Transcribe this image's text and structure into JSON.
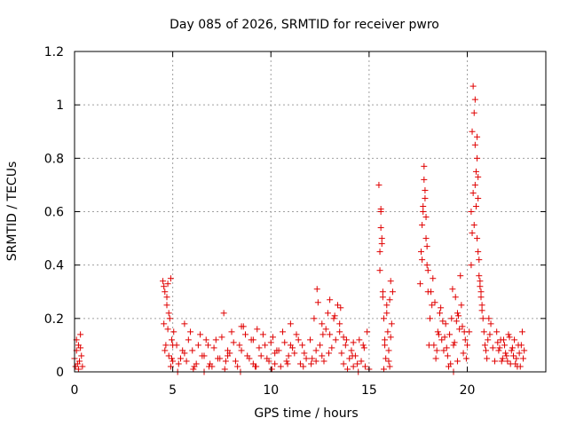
{
  "chart_data": {
    "type": "scatter",
    "title": "Day 085 of 2026, SRMTID for receiver pwro",
    "xlabel": "GPS time / hours",
    "ylabel": "SRMTID / TECUs",
    "xlim": [
      0,
      24
    ],
    "ylim": [
      0,
      1.2
    ],
    "xticks": [
      0,
      5,
      10,
      15,
      20
    ],
    "xtick_labels": [
      "0",
      "5",
      "10",
      "15",
      "20"
    ],
    "yticks": [
      0,
      0.2,
      0.4,
      0.6,
      0.8,
      1.0,
      1.2
    ],
    "ytick_labels": [
      "0",
      "0.2",
      "0.4",
      "0.6",
      "0.8",
      "1",
      "1.2"
    ],
    "grid": true,
    "marker": "+",
    "color": "#e00000",
    "series": [
      {
        "name": "SRMTID",
        "x": [
          0.0,
          0.05,
          0.1,
          0.15,
          0.2,
          0.25,
          0.3,
          0.35,
          0.4,
          0.1,
          0.3,
          0.2,
          4.5,
          4.55,
          4.6,
          4.65,
          4.7,
          4.75,
          4.8,
          4.85,
          4.9,
          4.95,
          5.0,
          5.05,
          4.6,
          4.7,
          4.8,
          4.9,
          5.0,
          4.55,
          4.75,
          4.95,
          5.2,
          5.4,
          5.6,
          5.8,
          6.0,
          6.2,
          6.4,
          6.6,
          6.8,
          7.0,
          7.2,
          7.4,
          7.6,
          7.8,
          8.0,
          8.2,
          8.4,
          8.6,
          8.8,
          9.0,
          9.2,
          9.4,
          9.6,
          9.8,
          10.0,
          10.2,
          10.4,
          10.6,
          10.8,
          11.0,
          11.2,
          11.4,
          11.6,
          11.8,
          5.3,
          5.5,
          5.7,
          5.9,
          6.1,
          6.3,
          6.5,
          6.7,
          6.9,
          7.1,
          7.3,
          7.5,
          7.7,
          7.9,
          8.1,
          8.3,
          8.5,
          8.7,
          8.9,
          9.1,
          9.3,
          9.5,
          9.7,
          9.9,
          10.1,
          10.3,
          10.5,
          10.7,
          10.9,
          11.1,
          11.3,
          11.5,
          11.7,
          5.25,
          6.05,
          6.85,
          7.65,
          8.45,
          9.25,
          10.05,
          10.85,
          11.65,
          7.8,
          8.5,
          9.1,
          10.2,
          11.0,
          6.6,
          5.6,
          12.0,
          12.1,
          12.2,
          12.3,
          12.4,
          12.5,
          12.6,
          12.7,
          12.8,
          12.9,
          13.0,
          13.1,
          13.2,
          13.3,
          13.4,
          13.5,
          13.6,
          13.7,
          13.8,
          13.9,
          14.0,
          14.1,
          14.2,
          14.3,
          14.4,
          14.5,
          14.6,
          14.7,
          14.8,
          14.9,
          15.0,
          12.05,
          12.35,
          12.65,
          12.95,
          13.25,
          13.55,
          13.85,
          14.15,
          14.45,
          14.75,
          12.3,
          13.5,
          14.2,
          13.0,
          12.6,
          13.7,
          15.5,
          15.55,
          15.6,
          15.65,
          15.7,
          15.75,
          15.8,
          15.85,
          15.9,
          15.95,
          16.0,
          16.05,
          16.1,
          16.15,
          16.2,
          15.55,
          15.6,
          15.65,
          15.7,
          15.8,
          15.9,
          16.0,
          16.1,
          15.6,
          15.75,
          16.05,
          17.6,
          17.65,
          17.7,
          17.75,
          17.8,
          17.85,
          17.9,
          17.95,
          18.0,
          18.1,
          18.2,
          18.3,
          18.4,
          18.5,
          18.6,
          18.7,
          18.8,
          18.9,
          19.0,
          19.1,
          19.2,
          19.3,
          19.4,
          19.5,
          19.6,
          19.7,
          19.8,
          19.9,
          17.8,
          17.85,
          17.9,
          17.95,
          18.0,
          17.7,
          17.75,
          18.15,
          18.35,
          18.55,
          18.75,
          18.95,
          19.15,
          19.35,
          19.55,
          19.75,
          19.95,
          18.25,
          18.45,
          18.65,
          18.85,
          19.05,
          19.25,
          19.45,
          19.65,
          19.85,
          18.05,
          19.3,
          19.5,
          20.0,
          20.1,
          20.2,
          20.25,
          20.3,
          20.35,
          20.4,
          20.45,
          20.5,
          20.55,
          20.6,
          20.65,
          20.7,
          20.75,
          20.8,
          20.85,
          20.9,
          20.95,
          21.0,
          21.05,
          21.1,
          21.2,
          21.3,
          21.4,
          20.35,
          20.4,
          20.45,
          20.5,
          20.3,
          20.55,
          20.25,
          20.6,
          20.65,
          20.7,
          20.75,
          20.5,
          20.55,
          20.4,
          20.2,
          21.15,
          21.5,
          21.6,
          21.7,
          21.8,
          21.9,
          22.0,
          22.1,
          22.2,
          22.3,
          22.4,
          22.5,
          22.6,
          22.7,
          22.8,
          22.9,
          21.55,
          21.75,
          21.95,
          22.15,
          22.35,
          22.55,
          22.75,
          22.85,
          21.65,
          21.85,
          22.05,
          22.25,
          22.45,
          22.65
        ],
        "y": [
          0.05,
          0.02,
          0.08,
          0.03,
          0.1,
          0.04,
          0.14,
          0.06,
          0.02,
          0.12,
          0.09,
          0.01,
          0.34,
          0.18,
          0.3,
          0.1,
          0.25,
          0.33,
          0.06,
          0.2,
          0.35,
          0.12,
          0.04,
          0.15,
          0.08,
          0.28,
          0.22,
          0.02,
          0.1,
          0.32,
          0.16,
          0.05,
          0.1,
          0.05,
          0.18,
          0.12,
          0.08,
          0.03,
          0.14,
          0.06,
          0.1,
          0.02,
          0.12,
          0.05,
          0.22,
          0.08,
          0.15,
          0.04,
          0.1,
          0.17,
          0.06,
          0.12,
          0.02,
          0.09,
          0.14,
          0.05,
          0.11,
          0.03,
          0.08,
          0.15,
          0.04,
          0.18,
          0.07,
          0.12,
          0.1,
          0.05,
          0.03,
          0.08,
          0.04,
          0.15,
          0.02,
          0.1,
          0.06,
          0.12,
          0.03,
          0.09,
          0.05,
          0.13,
          0.04,
          0.07,
          0.11,
          0.02,
          0.08,
          0.14,
          0.05,
          0.03,
          0.16,
          0.06,
          0.1,
          0.04,
          0.13,
          0.08,
          0.02,
          0.11,
          0.06,
          0.09,
          0.14,
          0.03,
          0.07,
          0.0,
          0.01,
          0.02,
          0.01,
          0.0,
          0.02,
          0.01,
          0.03,
          0.02,
          0.06,
          0.17,
          0.12,
          0.07,
          0.1,
          0.0,
          0.07,
          0.12,
          0.05,
          0.2,
          0.08,
          0.26,
          0.1,
          0.18,
          0.04,
          0.16,
          0.22,
          0.14,
          0.09,
          0.2,
          0.12,
          0.25,
          0.15,
          0.07,
          0.03,
          0.1,
          0.01,
          0.05,
          0.08,
          0.02,
          0.06,
          0.03,
          0.12,
          0.04,
          0.1,
          0.02,
          0.15,
          0.01,
          0.03,
          0.31,
          0.14,
          0.07,
          0.21,
          0.24,
          0.12,
          0.06,
          0.0,
          0.09,
          0.04,
          0.18,
          0.11,
          0.27,
          0.06,
          0.13,
          0.7,
          0.45,
          0.6,
          0.5,
          0.3,
          0.2,
          0.12,
          0.05,
          0.25,
          0.15,
          0.08,
          0.02,
          0.34,
          0.18,
          0.3,
          0.38,
          0.54,
          0.48,
          0.28,
          0.1,
          0.22,
          0.04,
          0.13,
          0.61,
          0.01,
          0.27,
          0.33,
          0.45,
          0.55,
          0.6,
          0.72,
          0.65,
          0.5,
          0.4,
          0.3,
          0.2,
          0.25,
          0.1,
          0.05,
          0.15,
          0.22,
          0.12,
          0.08,
          0.18,
          0.06,
          0.14,
          0.2,
          0.1,
          0.28,
          0.04,
          0.16,
          0.25,
          0.07,
          0.12,
          0.77,
          0.68,
          0.58,
          0.47,
          0.38,
          0.42,
          0.62,
          0.3,
          0.26,
          0.14,
          0.19,
          0.09,
          0.03,
          0.11,
          0.21,
          0.17,
          0.05,
          0.35,
          0.08,
          0.24,
          0.13,
          0.02,
          0.31,
          0.19,
          0.36,
          0.15,
          0.1,
          0.0,
          0.22,
          0.1,
          0.15,
          0.6,
          0.9,
          1.07,
          0.97,
          0.85,
          0.75,
          0.5,
          0.65,
          0.42,
          0.34,
          0.3,
          0.25,
          0.2,
          0.15,
          0.1,
          0.08,
          0.05,
          0.12,
          0.2,
          0.18,
          0.09,
          0.04,
          0.55,
          0.7,
          0.62,
          0.8,
          0.67,
          0.45,
          0.52,
          0.36,
          0.32,
          0.28,
          0.23,
          0.88,
          0.73,
          1.02,
          0.4,
          0.14,
          0.15,
          0.08,
          0.12,
          0.05,
          0.1,
          0.06,
          0.14,
          0.03,
          0.09,
          0.12,
          0.05,
          0.1,
          0.02,
          0.15,
          0.08,
          0.11,
          0.04,
          0.07,
          0.13,
          0.06,
          0.02,
          0.1,
          0.05,
          0.09,
          0.12,
          0.04,
          0.08,
          0.03,
          0.07
        ]
      }
    ]
  }
}
